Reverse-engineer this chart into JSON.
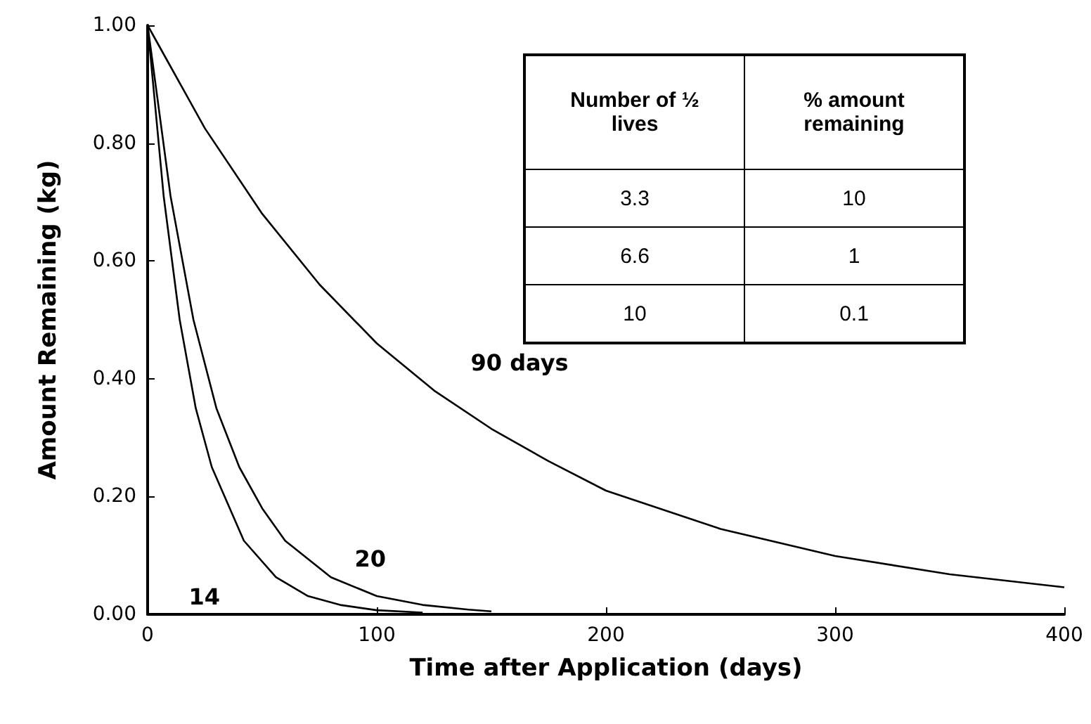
{
  "chart_data": {
    "type": "line",
    "xlabel": "Time after Application (days)",
    "ylabel": "Amount Remaining (kg)",
    "xlim": [
      0,
      400
    ],
    "xticks": [
      0,
      100,
      200,
      300,
      400
    ],
    "ylim": [
      0,
      1
    ],
    "yticks": [
      {
        "value": 0,
        "label": "0.00"
      },
      {
        "value": 0.2,
        "label": "0.20"
      },
      {
        "value": 0.4,
        "label": "0.40"
      },
      {
        "value": 0.6,
        "label": "0.60"
      },
      {
        "value": 0.8,
        "label": "0.80"
      },
      {
        "value": 1,
        "label": "1.00"
      }
    ],
    "grid": false,
    "legend": false,
    "marker": "none",
    "line_style": "solid",
    "series": [
      {
        "name": "14",
        "color": "#000000",
        "x": [
          0,
          7,
          14,
          21,
          28,
          42,
          56,
          70,
          84,
          100,
          120
        ],
        "values": [
          1,
          0.71,
          0.5,
          0.35,
          0.25,
          0.125,
          0.063,
          0.031,
          0.016,
          0.007,
          0.003
        ]
      },
      {
        "name": "20",
        "color": "#000000",
        "x": [
          0,
          10,
          20,
          30,
          40,
          50,
          60,
          80,
          100,
          120,
          140,
          150
        ],
        "values": [
          1,
          0.71,
          0.5,
          0.35,
          0.25,
          0.18,
          0.125,
          0.063,
          0.031,
          0.016,
          0.008,
          0.005
        ]
      },
      {
        "name": "90 days",
        "color": "#000000",
        "x": [
          0,
          25,
          50,
          75,
          100,
          125,
          150,
          175,
          200,
          250,
          300,
          350,
          400
        ],
        "values": [
          1,
          0.825,
          0.68,
          0.56,
          0.46,
          0.38,
          0.315,
          0.26,
          0.21,
          0.145,
          0.099,
          0.068,
          0.046
        ]
      }
    ],
    "annotations": [
      "Number of ½ lives",
      "% amount remaining",
      "3.3",
      "10",
      "6.6",
      "1",
      "10",
      "0.1"
    ]
  }
}
